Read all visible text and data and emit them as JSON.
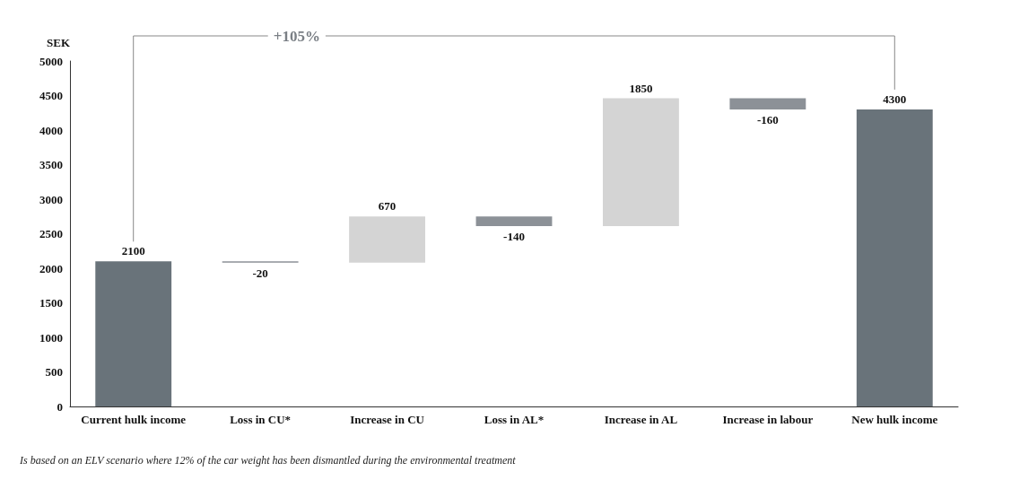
{
  "chart_data": {
    "type": "bar",
    "ylabel": "SEK",
    "categories": [
      "Current hulk income",
      "Loss in CU*",
      "Increase in CU",
      "Loss in AL*",
      "Increase in AL",
      "Increase in labour",
      "New hulk income"
    ],
    "values": [
      2100,
      -20,
      670,
      -140,
      1850,
      -160,
      4300
    ],
    "base": [
      0,
      2100,
      2080,
      2750,
      2610,
      4460,
      0
    ],
    "colors": [
      "#69737a",
      "#8c9197",
      "#d4d4d4",
      "#8c9197",
      "#d4d4d4",
      "#8c9197",
      "#69737a"
    ],
    "data_labels": true,
    "ylim": [
      0,
      5000
    ],
    "yticks": [
      0,
      500,
      1000,
      1500,
      2000,
      2500,
      3000,
      3500,
      4000,
      4500,
      5000
    ],
    "grid": false,
    "annotations": [
      "+105%",
      "Is based on an ELV scenario where 12% of the car weight has been dismantled during the environmental treatment"
    ]
  }
}
